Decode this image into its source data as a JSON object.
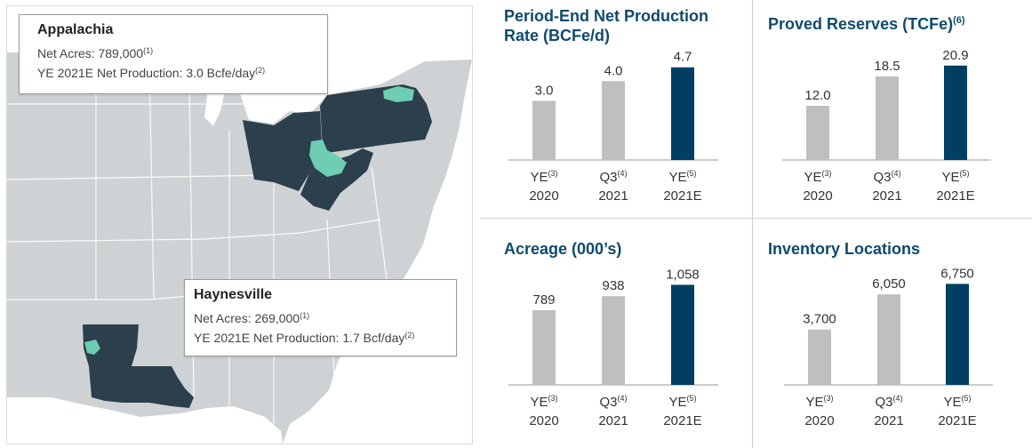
{
  "colors": {
    "navy": "#0e4a6c",
    "bar_gray": "#bfbfbf",
    "bar_dark": "#003f63",
    "state_dark": "#2b3f4c",
    "play_teal": "#6ecdb2",
    "map_land": "#cfd2d4",
    "map_water": "#ffffff"
  },
  "map": {
    "appalachia": {
      "title": "Appalachia",
      "acres_label": "Net Acres: 789,000",
      "acres_note": "(1)",
      "prod_label": "YE 2021E Net Production: 3.0 Bcfe/day",
      "prod_note": "(2)"
    },
    "haynesville": {
      "title": "Haynesville",
      "acres_label": "Net Acres: 269,000",
      "acres_note": "(1)",
      "prod_label": "YE 2021E Net Production: 1.7 Bcf/day",
      "prod_note": "(2)"
    }
  },
  "chart_data": [
    {
      "type": "bar",
      "title": "Period-End Net Production Rate (BCFe/d)",
      "title_line1": "Period-End Net Production",
      "title_line2": "Rate (BCFe/d)",
      "title_note": "",
      "categories": [
        {
          "line1": "YE",
          "note": "(3)",
          "line2": "2020"
        },
        {
          "line1": "Q3",
          "note": "(4)",
          "line2": "2021"
        },
        {
          "line1": "YE",
          "note": "(5)",
          "line2": "2021E"
        }
      ],
      "values": [
        3.0,
        4.0,
        4.7
      ],
      "labels": [
        "3.0",
        "4.0",
        "4.7"
      ],
      "highlight": [
        false,
        false,
        true
      ],
      "ylim": [
        0,
        5.5
      ]
    },
    {
      "type": "bar",
      "title": "Proved Reserves (TCFe)",
      "title_line1": "Proved Reserves (TCFe)",
      "title_line2": "",
      "title_note": "(6)",
      "categories": [
        {
          "line1": "YE",
          "note": "(3)",
          "line2": "2020"
        },
        {
          "line1": "Q3",
          "note": "(4)",
          "line2": "2021"
        },
        {
          "line1": "YE",
          "note": "(5)",
          "line2": "2021E"
        }
      ],
      "values": [
        12.0,
        18.5,
        20.9
      ],
      "labels": [
        "12.0",
        "18.5",
        "20.9"
      ],
      "highlight": [
        false,
        false,
        true
      ],
      "ylim": [
        0,
        24
      ]
    },
    {
      "type": "bar",
      "title": "Acreage (000’s)",
      "title_line1": "Acreage (000’s)",
      "title_line2": "",
      "title_note": "",
      "categories": [
        {
          "line1": "YE",
          "note": "(3)",
          "line2": "2020"
        },
        {
          "line1": "Q3",
          "note": "(4)",
          "line2": "2021"
        },
        {
          "line1": "YE",
          "note": "(5)",
          "line2": "2021E"
        }
      ],
      "values": [
        789,
        938,
        1058
      ],
      "labels": [
        "789",
        "938",
        "1,058"
      ],
      "highlight": [
        false,
        false,
        true
      ],
      "ylim": [
        0,
        1250
      ]
    },
    {
      "type": "bar",
      "title": "Inventory Locations",
      "title_line1": "Inventory Locations",
      "title_line2": "",
      "title_note": "",
      "categories": [
        {
          "line1": "YE",
          "note": "(3)",
          "line2": "2020"
        },
        {
          "line1": "Q3",
          "note": "(4)",
          "line2": "2021"
        },
        {
          "line1": "YE",
          "note": "(5)",
          "line2": "2021E"
        }
      ],
      "values": [
        3700,
        6050,
        6750
      ],
      "labels": [
        "3,700",
        "6,050",
        "6,750"
      ],
      "highlight": [
        false,
        false,
        true
      ],
      "ylim": [
        0,
        7900
      ]
    }
  ]
}
